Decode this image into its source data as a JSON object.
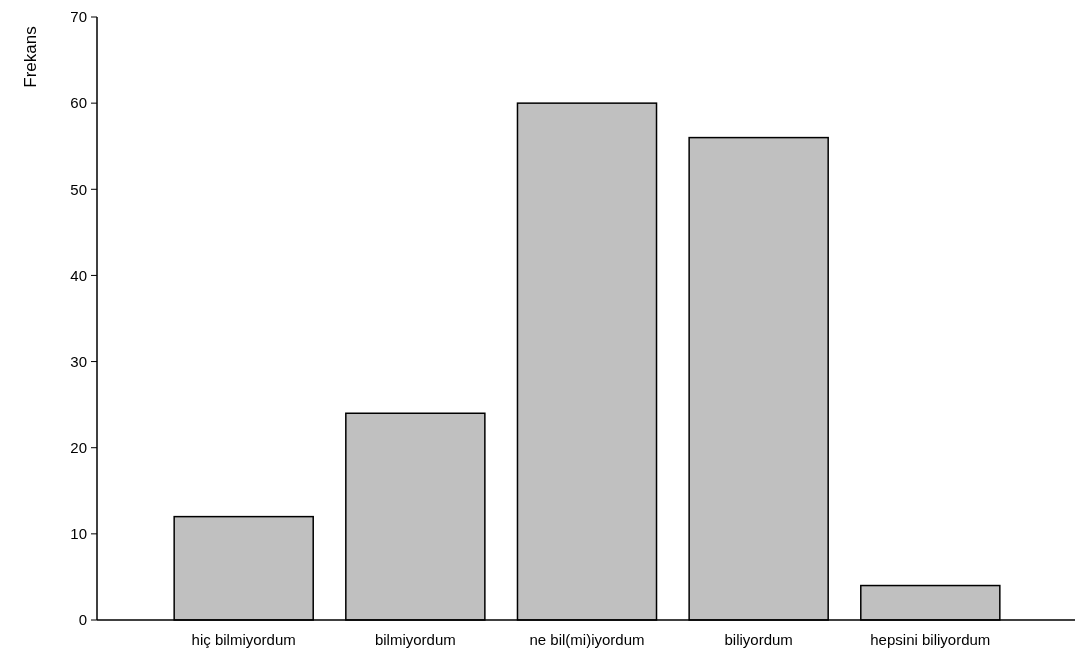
{
  "chart_data": {
    "type": "bar",
    "ylabel": "Frekans",
    "categories": [
      "hiç bilmiyordum",
      "bilmiyordum",
      "ne bil(mi)iyordum",
      "biliyordum",
      "hepsini biliyordum"
    ],
    "values": [
      12,
      24,
      60,
      56,
      4
    ],
    "color": "#c0c0c0",
    "ylim": [
      0,
      70
    ],
    "yticks": [
      0,
      10,
      20,
      30,
      40,
      50,
      60,
      70
    ],
    "grid": false
  }
}
